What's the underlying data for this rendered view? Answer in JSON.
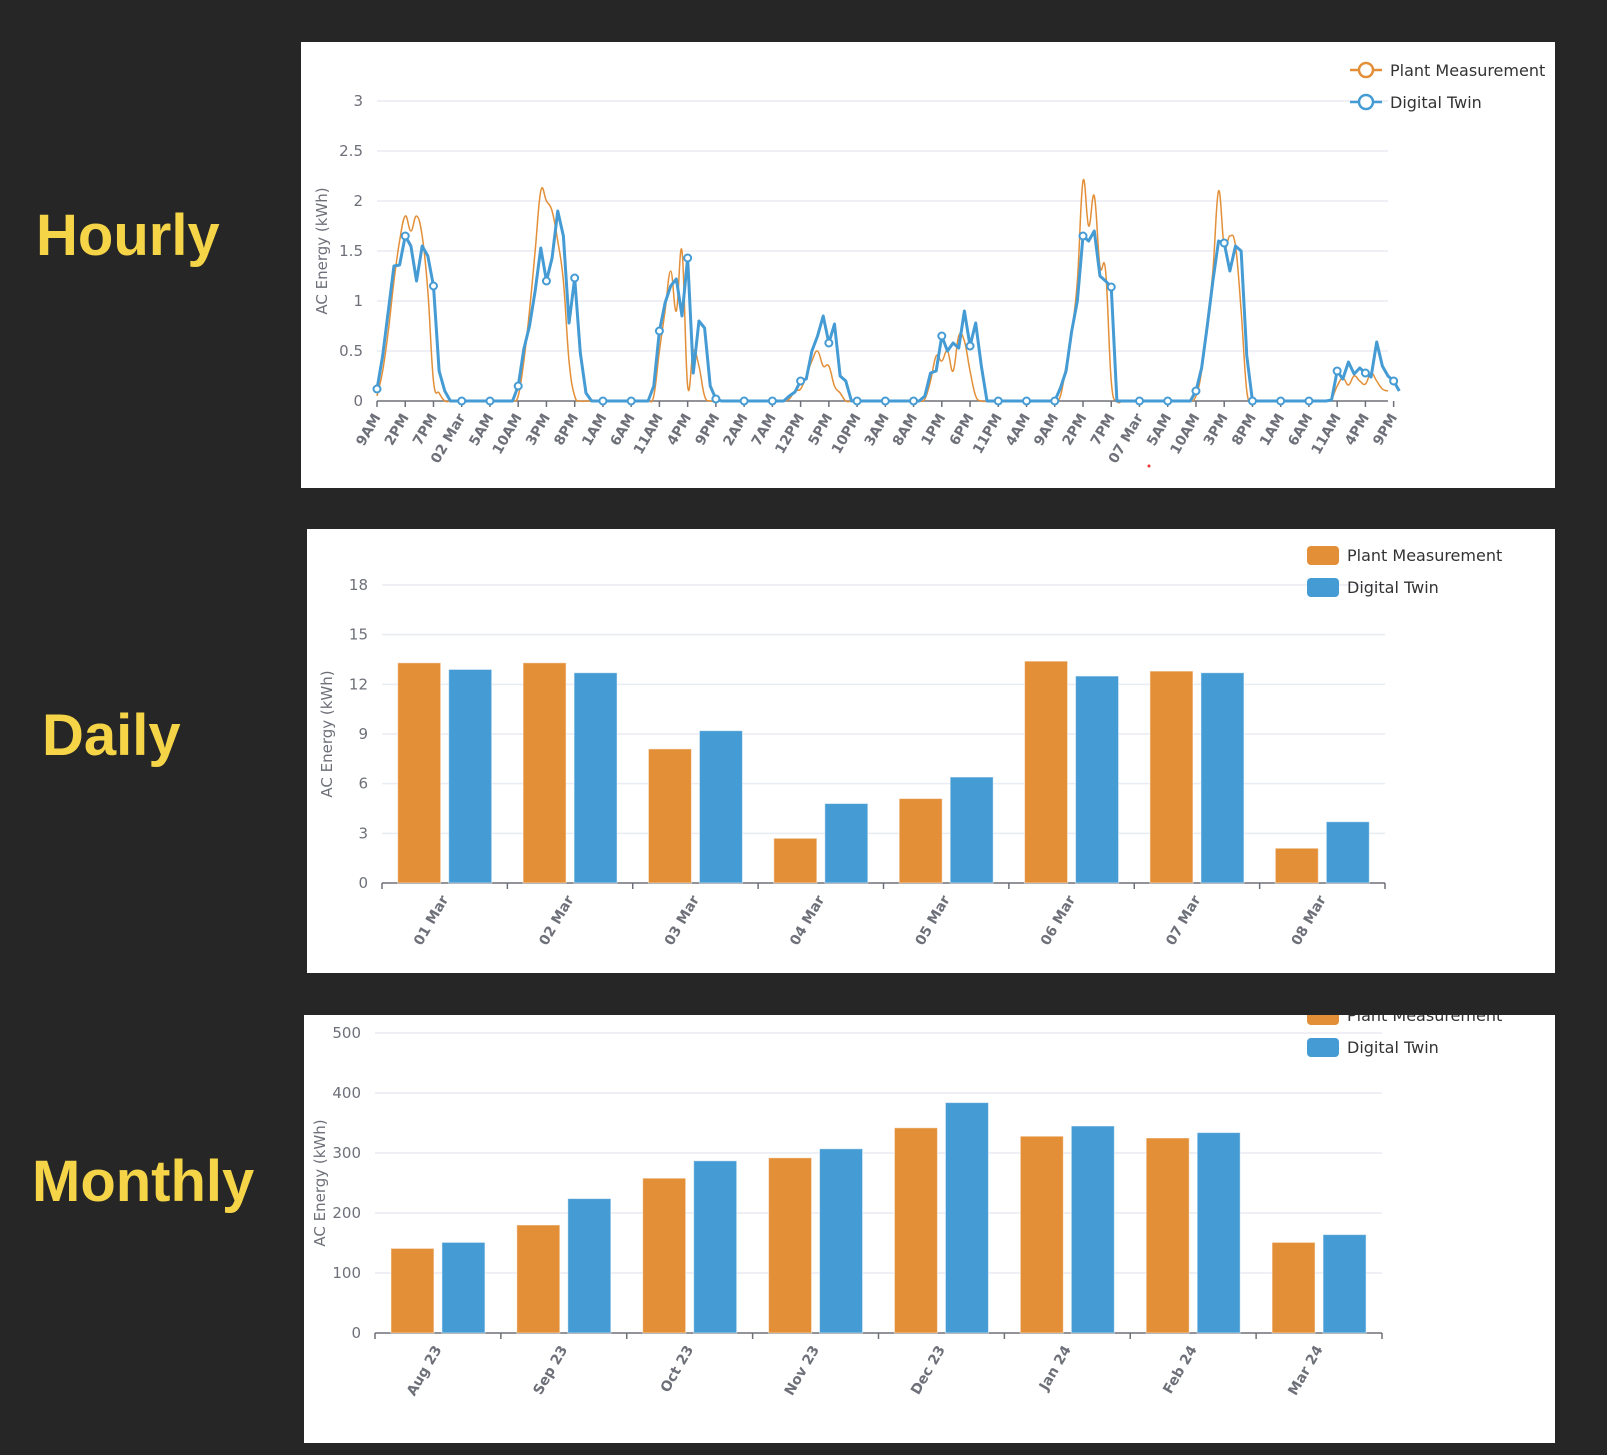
{
  "labels": {
    "hourly": "Hourly",
    "daily": "Daily",
    "monthly": "Monthly"
  },
  "colors": {
    "plant": "#E38F38",
    "twin": "#459BD4",
    "label": "#F5D547",
    "background": "#262626"
  },
  "chart_data": [
    {
      "id": "hourly",
      "type": "line",
      "title": "",
      "xlabel": "",
      "ylabel": "AC Energy (kWh)",
      "ylim": [
        0,
        3
      ],
      "yticks": [
        "0",
        "0.5",
        "1",
        "1.5",
        "2",
        "2.5",
        "3"
      ],
      "ytick_values": [
        0,
        0.5,
        1,
        1.5,
        2,
        2.5,
        3
      ],
      "grid": true,
      "legend": "top-right",
      "x_start": "01 Mar 9AM",
      "x_step": "1 hour",
      "xtick_every": 5,
      "xticks": [
        "9AM",
        "2PM",
        "7PM",
        "02 Mar",
        "5AM",
        "10AM",
        "3PM",
        "8PM",
        "1AM",
        "6AM",
        "11AM",
        "4PM",
        "9PM",
        "2AM",
        "7AM",
        "12PM",
        "5PM",
        "10PM",
        "3AM",
        "8AM",
        "1PM",
        "6PM",
        "11PM",
        "4AM",
        "9AM",
        "2PM",
        "7PM",
        "07 Mar",
        "5AM",
        "10AM",
        "3PM",
        "8PM",
        "1AM",
        "6AM",
        "11AM",
        "4PM",
        "9PM"
      ],
      "series": [
        {
          "name": "Plant Measurement",
          "color": "#E38F38",
          "smooth": true,
          "values": [
            0.05,
            0.3,
            0.7,
            1.2,
            1.6,
            1.85,
            1.7,
            1.85,
            1.65,
            1.1,
            0.2,
            0.08,
            0,
            0,
            0,
            0,
            0,
            0,
            0,
            0,
            0,
            0,
            0,
            0,
            0,
            0.05,
            0.4,
            0.9,
            1.5,
            2.1,
            2.0,
            1.9,
            1.6,
            1.2,
            0.4,
            0.05,
            0,
            0,
            0,
            0,
            0,
            0,
            0,
            0,
            0,
            0,
            0,
            0,
            0,
            0.05,
            0.5,
            0.9,
            1.3,
            0.9,
            1.5,
            0.15,
            0.5,
            0.35,
            0.05,
            0,
            0,
            0,
            0,
            0,
            0,
            0,
            0,
            0,
            0,
            0,
            0,
            0,
            0,
            0.02,
            0.1,
            0.12,
            0.25,
            0.4,
            0.5,
            0.35,
            0.35,
            0.15,
            0.08,
            0,
            0,
            0,
            0,
            0,
            0,
            0,
            0,
            0,
            0,
            0,
            0,
            0,
            0,
            0.02,
            0.2,
            0.45,
            0.4,
            0.5,
            0.3,
            0.65,
            0.6,
            0.3,
            0.05,
            0,
            0,
            0,
            0,
            0,
            0,
            0,
            0,
            0,
            0,
            0,
            0,
            0,
            0,
            0.05,
            0.35,
            0.7,
            1.2,
            2.2,
            1.75,
            2.05,
            1.35,
            1.3,
            0.2,
            0,
            0,
            0,
            0,
            0,
            0,
            0,
            0,
            0,
            0,
            0,
            0,
            0,
            0,
            0.05,
            0.3,
            0.8,
            1.3,
            2.1,
            1.55,
            1.65,
            1.55,
            0.9,
            0.1,
            0,
            0,
            0,
            0,
            0,
            0,
            0,
            0,
            0,
            0,
            0,
            0,
            0,
            0,
            0.02,
            0.15,
            0.23,
            0.16,
            0.25,
            0.2,
            0.17,
            0.28,
            0.2,
            0.12,
            0.1
          ]
        },
        {
          "name": "Digital Twin",
          "color": "#459BD4",
          "smooth": false,
          "values": [
            0.12,
            0.45,
            0.9,
            1.35,
            1.36,
            1.65,
            1.55,
            1.2,
            1.55,
            1.45,
            1.15,
            0.3,
            0.1,
            0,
            0,
            0,
            0,
            0,
            0,
            0,
            0,
            0,
            0,
            0,
            0,
            0.15,
            0.52,
            0.75,
            1.1,
            1.53,
            1.2,
            1.43,
            1.9,
            1.65,
            0.78,
            1.23,
            0.48,
            0.08,
            0,
            0,
            0,
            0,
            0,
            0,
            0,
            0,
            0,
            0,
            0,
            0.15,
            0.7,
            0.98,
            1.15,
            1.22,
            0.85,
            1.43,
            0.28,
            0.8,
            0.73,
            0.15,
            0.02,
            0,
            0,
            0,
            0,
            0,
            0,
            0,
            0,
            0,
            0,
            0,
            0,
            0.05,
            0.09,
            0.2,
            0.22,
            0.5,
            0.65,
            0.85,
            0.58,
            0.77,
            0.25,
            0.2,
            0,
            0,
            0,
            0,
            0,
            0,
            0,
            0,
            0,
            0,
            0,
            0,
            0,
            0.05,
            0.28,
            0.3,
            0.65,
            0.5,
            0.58,
            0.53,
            0.9,
            0.55,
            0.78,
            0.35,
            0,
            0,
            0,
            0,
            0,
            0,
            0,
            0,
            0,
            0,
            0,
            0,
            0,
            0.13,
            0.3,
            0.7,
            1.0,
            1.65,
            1.6,
            1.7,
            1.25,
            1.2,
            1.14,
            0,
            0,
            0,
            0,
            0,
            0,
            0,
            0,
            0,
            0,
            0,
            0,
            0,
            0,
            0.1,
            0.33,
            0.75,
            1.2,
            1.6,
            1.58,
            1.3,
            1.55,
            1.5,
            0.45,
            0,
            0,
            0,
            0,
            0,
            0,
            0,
            0,
            0,
            0,
            0,
            0,
            0,
            0,
            0.01,
            0.3,
            0.22,
            0.39,
            0.27,
            0.33,
            0.28,
            0.24,
            0.59,
            0.35,
            0.25,
            0.2,
            0.1
          ]
        }
      ]
    },
    {
      "id": "daily",
      "type": "bar",
      "title": "",
      "xlabel": "",
      "ylabel": "AC Energy (kWh)",
      "ylim": [
        0,
        18
      ],
      "yticks": [
        "0",
        "3",
        "6",
        "9",
        "12",
        "15",
        "18"
      ],
      "ytick_values": [
        0,
        3,
        6,
        9,
        12,
        15,
        18
      ],
      "grid": true,
      "legend": "top-right",
      "categories": [
        "01 Mar",
        "02 Mar",
        "03 Mar",
        "04 Mar",
        "05 Mar",
        "06 Mar",
        "07 Mar",
        "08 Mar"
      ],
      "series": [
        {
          "name": "Plant Measurement",
          "color": "#E38F38",
          "values": [
            13.3,
            13.3,
            8.1,
            2.7,
            5.1,
            13.4,
            12.8,
            2.1
          ]
        },
        {
          "name": "Digital Twin",
          "color": "#459BD4",
          "values": [
            12.9,
            12.7,
            9.2,
            4.8,
            6.4,
            12.5,
            12.7,
            3.7
          ]
        }
      ]
    },
    {
      "id": "monthly",
      "type": "bar",
      "title": "",
      "xlabel": "",
      "ylabel": "AC Energy (kWh)",
      "ylim": [
        0,
        500
      ],
      "yticks": [
        "0",
        "100",
        "200",
        "300",
        "400",
        "500"
      ],
      "ytick_values": [
        0,
        100,
        200,
        300,
        400,
        500
      ],
      "grid": true,
      "legend": "top-right",
      "categories": [
        "Aug 23",
        "Sep 23",
        "Oct 23",
        "Nov 23",
        "Dec 23",
        "Jan 24",
        "Feb 24",
        "Mar 24"
      ],
      "series": [
        {
          "name": "Plant Measurement",
          "color": "#E38F38",
          "values": [
            141,
            180,
            258,
            292,
            342,
            328,
            325,
            151
          ]
        },
        {
          "name": "Digital Twin",
          "color": "#459BD4",
          "values": [
            151,
            224,
            287,
            307,
            384,
            345,
            334,
            164
          ]
        }
      ]
    }
  ]
}
